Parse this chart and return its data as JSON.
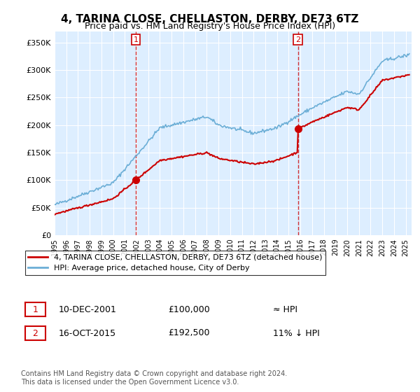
{
  "title": "4, TARINA CLOSE, CHELLASTON, DERBY, DE73 6TZ",
  "subtitle": "Price paid vs. HM Land Registry's House Price Index (HPI)",
  "ylabel_ticks": [
    "£0",
    "£50K",
    "£100K",
    "£150K",
    "£200K",
    "£250K",
    "£300K",
    "£350K"
  ],
  "ytick_vals": [
    0,
    50000,
    100000,
    150000,
    200000,
    250000,
    300000,
    350000
  ],
  "ylim": [
    0,
    370000
  ],
  "sale1": {
    "date_num": 2001.94,
    "price": 100000,
    "label": "1"
  },
  "sale2": {
    "date_num": 2015.79,
    "price": 192500,
    "label": "2"
  },
  "hpi_color": "#6baed6",
  "sale_color": "#cc0000",
  "annotation_color": "#cc0000",
  "background_color": "#ddeeff",
  "legend_label_red": "4, TARINA CLOSE, CHELLASTON, DERBY, DE73 6TZ (detached house)",
  "legend_label_blue": "HPI: Average price, detached house, City of Derby",
  "table_row1": [
    "1",
    "10-DEC-2001",
    "£100,000",
    "≈ HPI"
  ],
  "table_row2": [
    "2",
    "16-OCT-2015",
    "£192,500",
    "11% ↓ HPI"
  ],
  "footer": "Contains HM Land Registry data © Crown copyright and database right 2024.\nThis data is licensed under the Open Government Licence v3.0.",
  "xmin": 1995.0,
  "xmax": 2025.5
}
